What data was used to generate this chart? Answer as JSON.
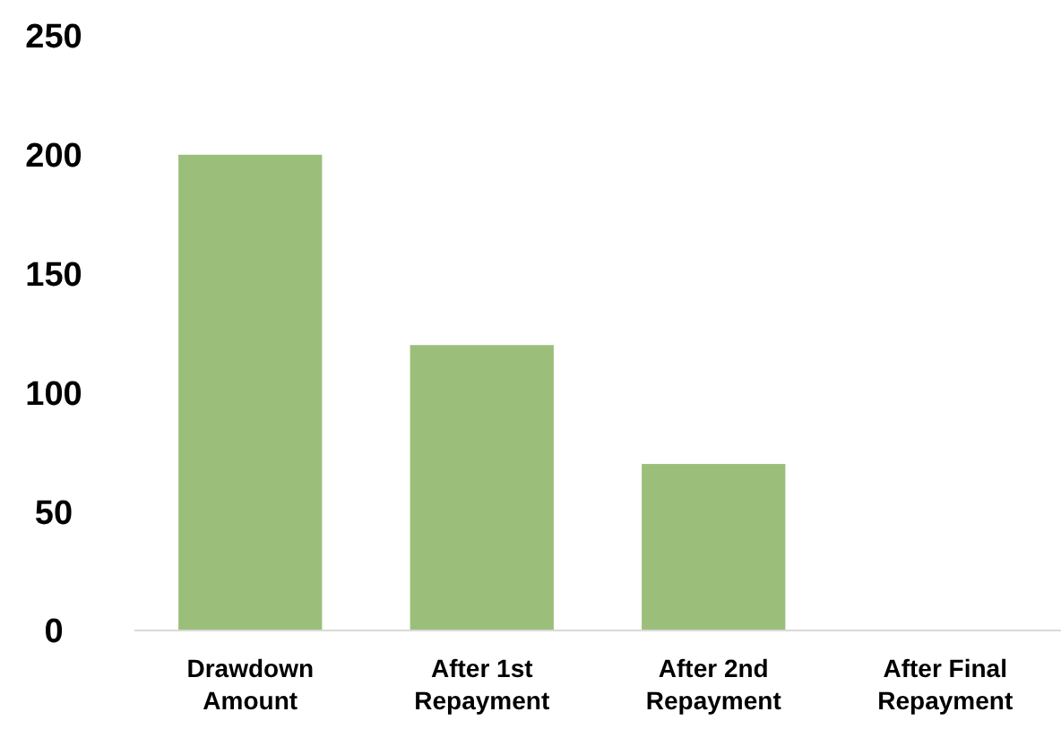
{
  "chart_data": {
    "type": "bar",
    "categories": [
      "Drawdown Amount",
      "After 1st Repayment",
      "After 2nd Repayment",
      "After Final Repayment"
    ],
    "values": [
      200,
      120,
      70,
      0
    ],
    "color": "#9bbf7a",
    "ylim": [
      0,
      250
    ],
    "yticks": [
      0,
      50,
      100,
      150,
      200,
      250
    ],
    "grid": false
  }
}
